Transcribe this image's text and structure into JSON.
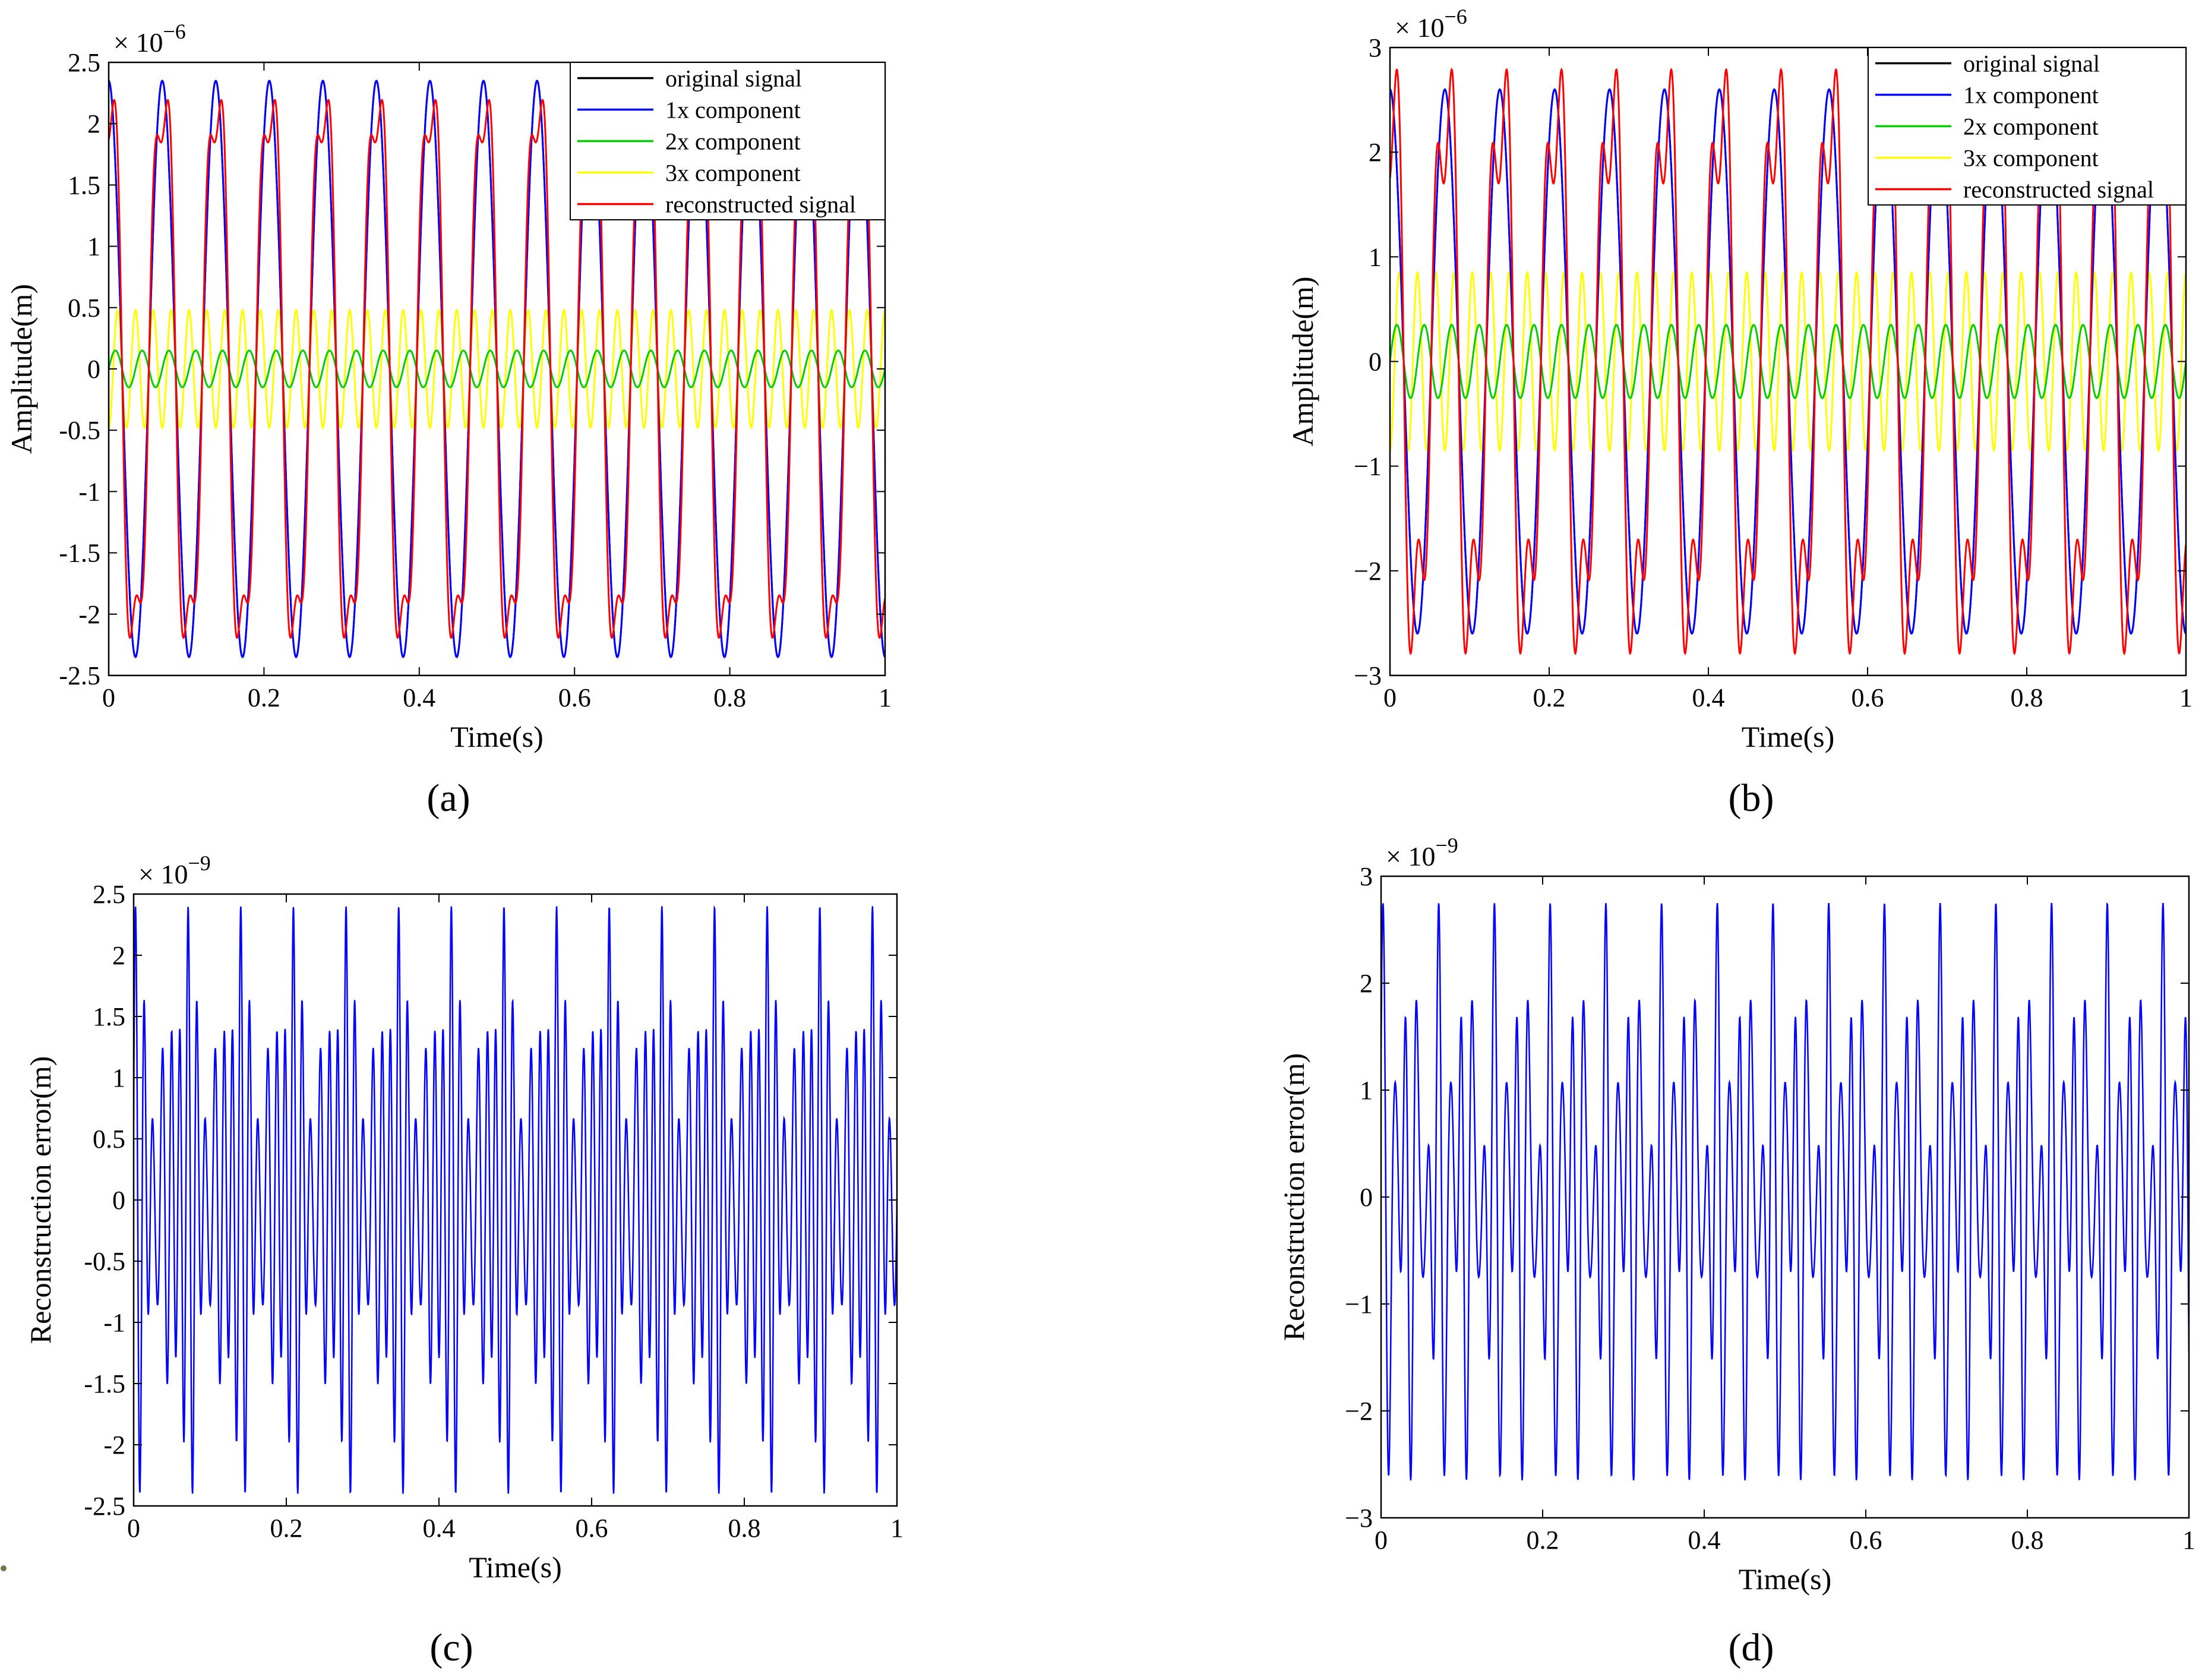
{
  "figure_captions": [
    "(a)",
    "(b)",
    "(c)",
    "(d)"
  ],
  "chart_data": [
    {
      "id": "a",
      "type": "line",
      "caption": "(a)",
      "xlabel": "Time(s)",
      "ylabel": "Amplitude(m)",
      "exponent_base": "× 10",
      "exponent_power": "−6",
      "xlim": [
        0,
        1
      ],
      "ylim": [
        -2.5,
        2.5
      ],
      "xticks": [
        0,
        0.2,
        0.4,
        0.6,
        0.8,
        1
      ],
      "xtick_labels": [
        "0",
        "0.2",
        "0.4",
        "0.6",
        "0.8",
        "1"
      ],
      "yticks": [
        -2.5,
        -2,
        -1.5,
        -1,
        -0.5,
        0,
        0.5,
        1,
        1.5,
        2,
        2.5
      ],
      "ytick_labels": [
        "-2.5",
        "-2",
        "-1.5",
        "-1",
        "-0.5",
        "0",
        "0.5",
        "1",
        "1.5",
        "2",
        "2.5"
      ],
      "legend_position": "top-right",
      "fundamental_hz": 14.5,
      "series": [
        {
          "name": "original signal",
          "color": "#000000",
          "harmonic": 1,
          "amplitude": 2.35,
          "phase_deg": 90
        },
        {
          "name": "1x component",
          "color": "#0000ff",
          "harmonic": 1,
          "amplitude": 2.35,
          "phase_deg": 90
        },
        {
          "name": "2x component",
          "color": "#00cc00",
          "harmonic": 2,
          "amplitude": 0.15,
          "phase_deg": 0
        },
        {
          "name": "3x component",
          "color": "#ffff00",
          "harmonic": 3,
          "amplitude": 0.48,
          "phase_deg": -90
        },
        {
          "name": "reconstructed signal",
          "color": "#ff0000",
          "harmonic": 0,
          "sum_of": [
            "1x component",
            "2x component",
            "3x component"
          ]
        }
      ]
    },
    {
      "id": "b",
      "type": "line",
      "caption": "(b)",
      "xlabel": "Time(s)",
      "ylabel": "Amplitude(m)",
      "exponent_base": "× 10",
      "exponent_power": "−6",
      "xlim": [
        0,
        1
      ],
      "ylim": [
        -3,
        3
      ],
      "xticks": [
        0,
        0.2,
        0.4,
        0.6,
        0.8,
        1
      ],
      "xtick_labels": [
        "0",
        "0.2",
        "0.4",
        "0.6",
        "0.8",
        "1"
      ],
      "yticks": [
        -3,
        -2,
        -1,
        0,
        1,
        2,
        3
      ],
      "ytick_labels": [
        "−3",
        "−2",
        "−1",
        "0",
        "1",
        "2",
        "3"
      ],
      "legend_position": "top-right",
      "fundamental_hz": 14.5,
      "series": [
        {
          "name": "original signal",
          "color": "#000000",
          "harmonic": 1,
          "amplitude": 2.6,
          "phase_deg": 90
        },
        {
          "name": "1x component",
          "color": "#0000ff",
          "harmonic": 1,
          "amplitude": 2.6,
          "phase_deg": 90
        },
        {
          "name": "2x component",
          "color": "#00cc00",
          "harmonic": 2,
          "amplitude": 0.35,
          "phase_deg": 0
        },
        {
          "name": "3x component",
          "color": "#ffff00",
          "harmonic": 3,
          "amplitude": 0.85,
          "phase_deg": -90
        },
        {
          "name": "reconstructed signal",
          "color": "#ff0000",
          "harmonic": 0,
          "sum_of": [
            "1x component",
            "2x component",
            "3x component"
          ]
        }
      ]
    },
    {
      "id": "c",
      "type": "line",
      "caption": "(c)",
      "xlabel": "Time(s)",
      "ylabel": "Reconstruction error(m)",
      "exponent_base": "× 10",
      "exponent_power": "−9",
      "xlim": [
        0,
        1
      ],
      "ylim": [
        -2.5,
        2.5
      ],
      "xticks": [
        0,
        0.2,
        0.4,
        0.6,
        0.8,
        1
      ],
      "xtick_labels": [
        "0",
        "0.2",
        "0.4",
        "0.6",
        "0.8",
        "1"
      ],
      "yticks": [
        -2.5,
        -2,
        -1.5,
        -1,
        -0.5,
        0,
        0.5,
        1,
        1.5,
        2,
        2.5
      ],
      "ytick_labels": [
        "-2.5",
        "-2",
        "-1.5",
        "-1",
        "-0.5",
        "0",
        "0.5",
        "1",
        "1.5",
        "2",
        "2.5"
      ],
      "series": [
        {
          "name": "reconstruction error",
          "color": "#0000ff",
          "components": [
            {
              "freq_hz": 87,
              "amplitude": 1.3,
              "phase_deg": 0
            },
            {
              "freq_hz": 101.5,
              "amplitude": 0.6,
              "phase_deg": 30
            },
            {
              "freq_hz": 58,
              "amplitude": 0.35,
              "phase_deg": 60
            }
          ],
          "envelope_hz": 14.5,
          "envelope_depth": 0.25,
          "peak_max": 2.4,
          "trough_min": -2.4
        }
      ]
    },
    {
      "id": "d",
      "type": "line",
      "caption": "(d)",
      "xlabel": "Time(s)",
      "ylabel": "Reconstruction error(m)",
      "exponent_base": "× 10",
      "exponent_power": "−9",
      "xlim": [
        0,
        1
      ],
      "ylim": [
        -3,
        3
      ],
      "xticks": [
        0,
        0.2,
        0.4,
        0.6,
        0.8,
        1
      ],
      "xtick_labels": [
        "0",
        "0.2",
        "0.4",
        "0.6",
        "0.8",
        "1"
      ],
      "yticks": [
        -3,
        -2,
        -1,
        0,
        1,
        2,
        3
      ],
      "ytick_labels": [
        "−3",
        "−2",
        "−1",
        "0",
        "1",
        "2",
        "3"
      ],
      "series": [
        {
          "name": "reconstruction error",
          "color": "#0000ff",
          "components": [
            {
              "freq_hz": 72.5,
              "amplitude": 1.5,
              "phase_deg": 20
            },
            {
              "freq_hz": 43.5,
              "amplitude": 0.8,
              "phase_deg": 80
            },
            {
              "freq_hz": 101.5,
              "amplitude": 0.4,
              "phase_deg": 10
            }
          ],
          "envelope_hz": 14.5,
          "envelope_depth": 0.2,
          "peak_max": 2.75,
          "trough_min": -2.65
        }
      ]
    }
  ]
}
